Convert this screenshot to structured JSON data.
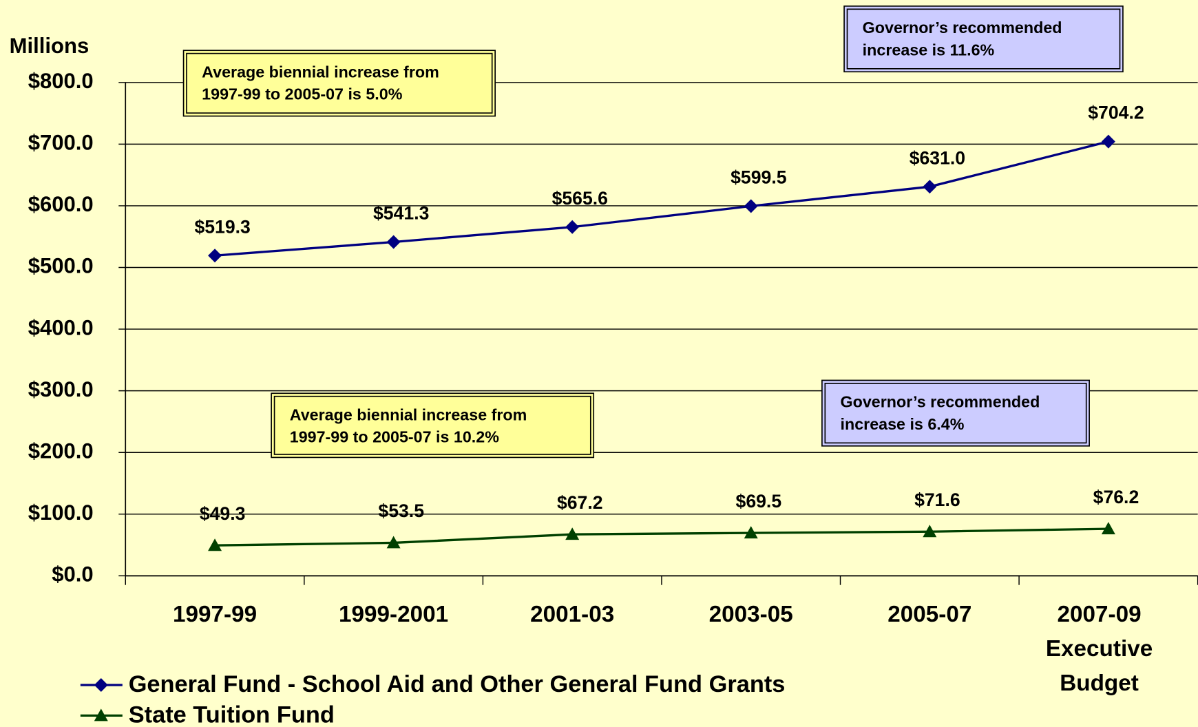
{
  "chart_data": {
    "type": "line",
    "y_label": "Millions",
    "categories": [
      "1997-99",
      "1999-2001",
      "2001-03",
      "2003-05",
      "2005-07",
      "2007-09\nExecutive\nBudget"
    ],
    "series": [
      {
        "name": "General Fund - School Aid and Other General Fund Grants",
        "color": "#000080",
        "marker": "diamond",
        "values": [
          519.3,
          541.3,
          565.6,
          599.5,
          631.0,
          704.2
        ],
        "value_labels": [
          "$519.3",
          "$541.3",
          "$565.6",
          "$599.5",
          "$631.0",
          "$704.2"
        ]
      },
      {
        "name": "State Tuition Fund",
        "color": "#004000",
        "marker": "triangle",
        "values": [
          49.3,
          53.5,
          67.2,
          69.5,
          71.6,
          76.2
        ],
        "value_labels": [
          "$49.3",
          "$53.5",
          "$67.2",
          "$69.5",
          "$71.6",
          "$76.2"
        ]
      }
    ],
    "ylim": [
      0,
      800
    ],
    "yticks": [
      {
        "value": 0,
        "label": "$0.0"
      },
      {
        "value": 100,
        "label": "$100.0"
      },
      {
        "value": 200,
        "label": "$200.0"
      },
      {
        "value": 300,
        "label": "$300.0"
      },
      {
        "value": 400,
        "label": "$400.0"
      },
      {
        "value": 500,
        "label": "$500.0"
      },
      {
        "value": 600,
        "label": "$600.0"
      },
      {
        "value": 700,
        "label": "$700.0"
      },
      {
        "value": 800,
        "label": "$800.0"
      }
    ],
    "grid": true,
    "annotations": [
      {
        "text": "Average biennial increase from\n1997-99 to 2005-07 is 5.0%",
        "color": "#ffff99"
      },
      {
        "text": "Governor’s recommended\nincrease is 11.6%",
        "color": "#ccccff"
      },
      {
        "text": "Average biennial increase from\n1997-99 to 2005-07 is 10.2%",
        "color": "#ffff99"
      },
      {
        "text": "Governor’s recommended\nincrease is 6.4%",
        "color": "#ccccff"
      }
    ]
  }
}
